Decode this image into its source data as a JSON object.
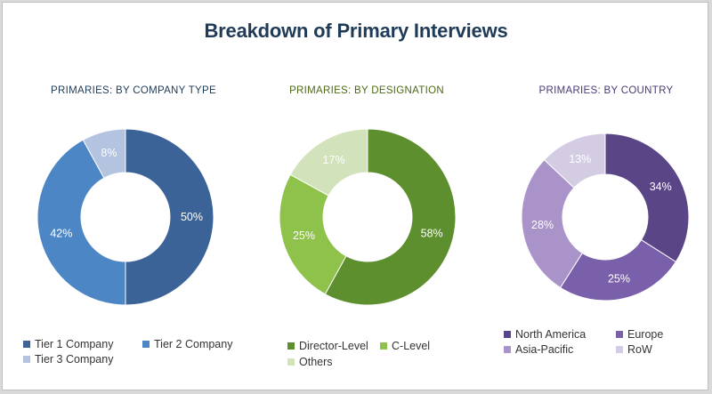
{
  "title": "Breakdown of Primary Interviews",
  "chart_data": [
    {
      "type": "pie",
      "title": "PRIMARIES: BY COMPANY TYPE",
      "title_color": "#1f3b57",
      "categories": [
        "Tier 1 Company",
        "Tier 2 Company",
        "Tier 3 Company"
      ],
      "values": [
        50,
        42,
        8
      ],
      "labels": [
        "50%",
        "42%",
        "8%"
      ],
      "colors": [
        "#3b6398",
        "#4d86c4",
        "#b3c3e0"
      ]
    },
    {
      "type": "pie",
      "title": "PRIMARIES: BY DESIGNATION",
      "title_color": "#4a6b12",
      "categories": [
        "Director-Level",
        "C-Level",
        "Others"
      ],
      "values": [
        58,
        25,
        17
      ],
      "labels": [
        "58%",
        "25%",
        "17%"
      ],
      "colors": [
        "#5e8f2f",
        "#8ec24a",
        "#d2e3bc"
      ]
    },
    {
      "type": "pie",
      "title": "PRIMARIES: BY COUNTRY",
      "title_color": "#4b3a78",
      "categories": [
        "North America",
        "Europe",
        "Asia-Pacific",
        "RoW"
      ],
      "values": [
        34,
        25,
        28,
        13
      ],
      "labels": [
        "34%",
        "25%",
        "28%",
        "13%"
      ],
      "colors": [
        "#5a4586",
        "#7a5fab",
        "#a993c9",
        "#d4cce3"
      ]
    }
  ]
}
